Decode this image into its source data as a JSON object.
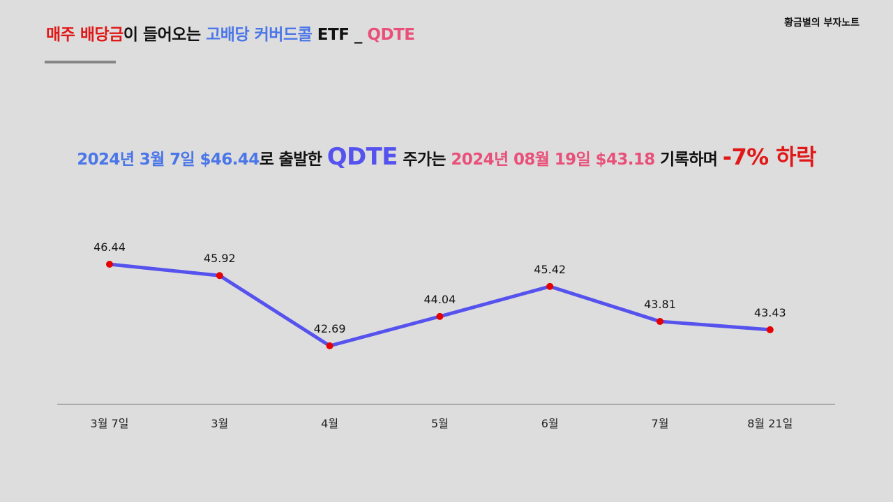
{
  "header": {
    "brand": "황금별의 부자노트",
    "title_part1": "매주 배당금",
    "title_part2": "이 들어오는 ",
    "title_part3": "고배당 커버드콜",
    "title_part4": " ETF _ ",
    "title_part5": "QDTE"
  },
  "subtitle": {
    "start_text": "2024년 3월 7일 $46.44",
    "mid1": "로 출발한 ",
    "ticker": "QDTE",
    "mid2": " 주가는 ",
    "end_text": "2024년 08월 19일 $43.18",
    "mid3": " 기록하며 ",
    "change": "-7% 하락"
  },
  "colors": {
    "red": "#e01818",
    "blue": "#4a76e8",
    "pink": "#e8507a",
    "line": "#5552ee",
    "marker": "#e60000",
    "axis": "#9a9a9a"
  },
  "chart_data": {
    "type": "line",
    "categories": [
      "3월 7일",
      "3월",
      "4월",
      "5월",
      "6월",
      "7월",
      "8월 21일"
    ],
    "values": [
      46.44,
      45.92,
      42.69,
      44.04,
      45.42,
      43.81,
      43.43
    ],
    "grid": false,
    "legend": "none"
  }
}
